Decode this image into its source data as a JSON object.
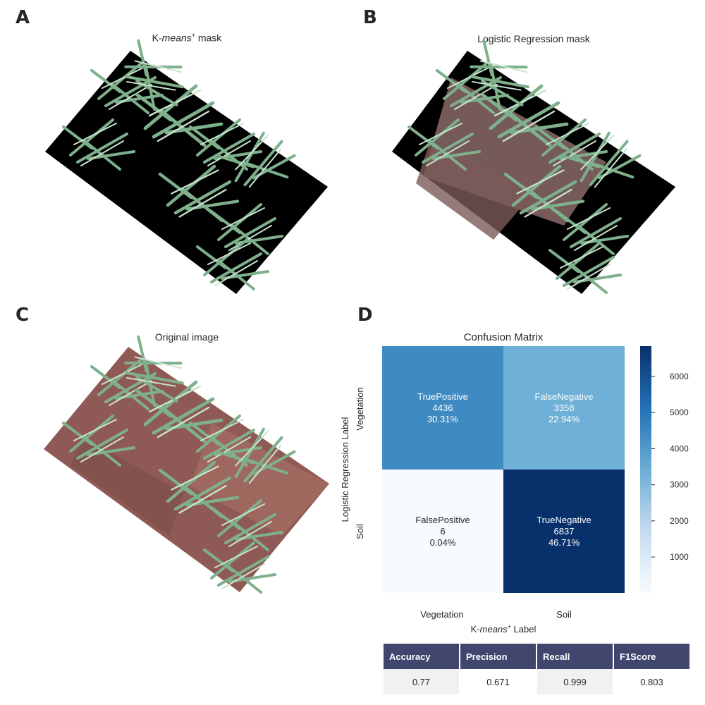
{
  "panels": {
    "a": {
      "letter": "A",
      "title_prefix": "K-",
      "title_italic": "means",
      "title_sup": "+",
      "title_suffix": " mask"
    },
    "b": {
      "letter": "B",
      "title": "Logistic Regression mask"
    },
    "c": {
      "letter": "C",
      "title": "Original image"
    },
    "d": {
      "letter": "D"
    }
  },
  "chart_data": {
    "type": "heatmap",
    "title": "Confusion Matrix",
    "rows": [
      "Vegetation",
      "Soil"
    ],
    "cols": [
      "Vegetation",
      "Soil"
    ],
    "ylabel": "Logistic Regression Label",
    "xlabel_prefix": "K-",
    "xlabel_italic": "means",
    "xlabel_sup": "+",
    "xlabel_suffix": " Label",
    "cells": [
      [
        {
          "name": "TruePositive",
          "value": 4436,
          "pct": "30.31%"
        },
        {
          "name": "FalseNegative",
          "value": 3358,
          "pct": "22.94%"
        }
      ],
      [
        {
          "name": "FalsePositive",
          "value": 6,
          "pct": "0.04%"
        },
        {
          "name": "TrueNegative",
          "value": 6837,
          "pct": "46.71%"
        }
      ]
    ],
    "colorbar": {
      "min": 6,
      "max": 6837,
      "ticks": [
        1000,
        2000,
        3000,
        4000,
        5000,
        6000
      ],
      "colormap": "Blues"
    }
  },
  "metrics": {
    "headers": [
      "Accuracy",
      "Precision",
      "Recall",
      "F1Score"
    ],
    "values": [
      "0.77",
      "0.671",
      "0.999",
      "0.803"
    ]
  },
  "colors": {
    "header_bg": "#40466e",
    "soil": "#8f5a55",
    "grass": "#6b9e78",
    "mask": "#000000"
  }
}
